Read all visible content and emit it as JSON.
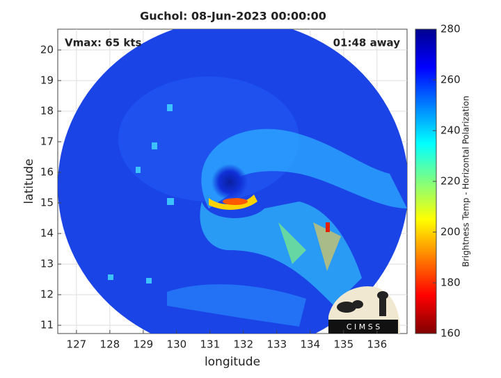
{
  "chart_data": {
    "type": "image",
    "title": "Guchol: 08-Jun-2023 00:00:00",
    "annotations": [
      "Vmax: 65 kts",
      "01:48 away"
    ],
    "xlabel": "longitude",
    "ylabel": "latitude",
    "xlim": [
      126.44,
      136.9
    ],
    "xticks": [
      127,
      128,
      129,
      130,
      131,
      132,
      133,
      134,
      135,
      136
    ],
    "ylim": [
      10.73,
      20.68
    ],
    "yticks": [
      11,
      12,
      13,
      14,
      15,
      16,
      17,
      18,
      19,
      20
    ],
    "grid": true,
    "colorbar": {
      "label": "Brightness Temp - Horizontal Polarization",
      "colormap": "jet_r",
      "lim": [
        160,
        280
      ],
      "ticks": [
        160,
        180,
        200,
        220,
        240,
        260,
        280
      ]
    },
    "logo_text": "C I M S S"
  }
}
